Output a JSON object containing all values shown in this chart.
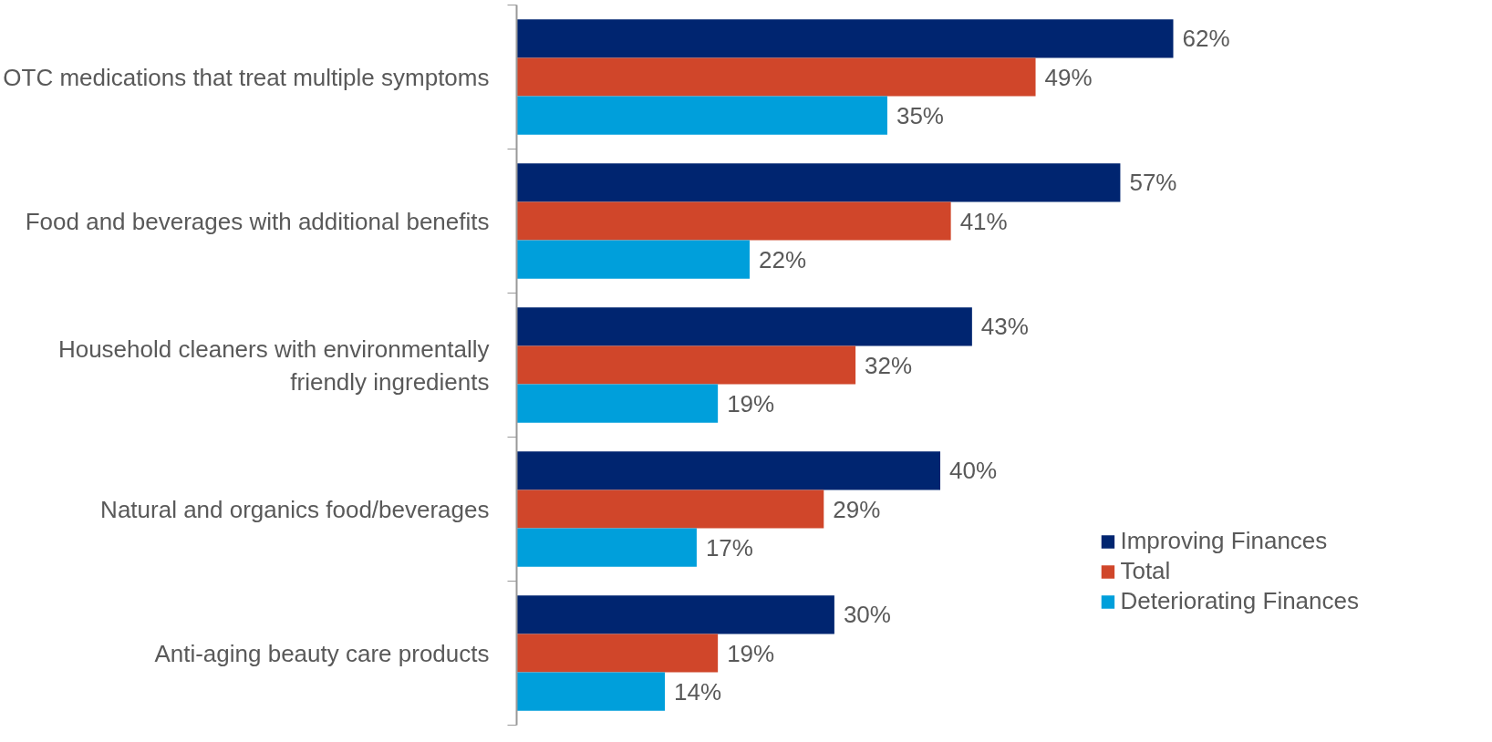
{
  "chart_data": {
    "type": "bar",
    "orientation": "horizontal",
    "categories": [
      "OTC medications that treat multiple symptoms",
      "Food and beverages with additional benefits",
      "Household cleaners with environmentally friendly ingredients",
      "Natural and organics food/beverages",
      "Anti-aging beauty care products"
    ],
    "series": [
      {
        "name": "Improving Finances",
        "color": "#002570",
        "values": [
          62,
          57,
          43,
          40,
          30
        ],
        "value_labels": [
          "62%",
          "57%",
          "43%",
          "40%",
          "30%"
        ]
      },
      {
        "name": "Total",
        "color": "#d0462a",
        "values": [
          49,
          41,
          32,
          29,
          19
        ],
        "value_labels": [
          "49%",
          "41%",
          "32%",
          "29%",
          "19%"
        ]
      },
      {
        "name": "Deteriorating Finances",
        "color": "#009fdb",
        "values": [
          35,
          22,
          19,
          17,
          14
        ],
        "value_labels": [
          "35%",
          "22%",
          "19%",
          "17%",
          "14%"
        ]
      }
    ],
    "legend": "right",
    "grid": false,
    "tick_labels": "y"
  }
}
